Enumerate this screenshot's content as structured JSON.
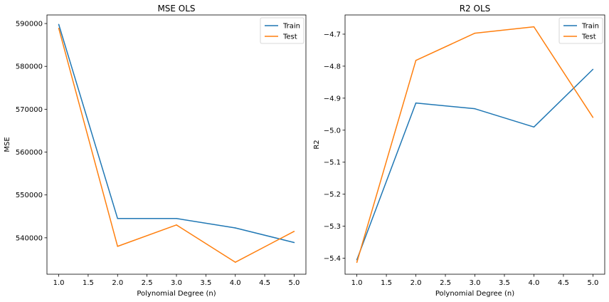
{
  "chart_data": [
    {
      "type": "line",
      "title": "MSE OLS",
      "xlabel": "Polynomial Degree (n)",
      "ylabel": "MSE",
      "x": [
        1.0,
        2.0,
        3.0,
        4.0,
        5.0
      ],
      "xticks": [
        1.0,
        1.5,
        2.0,
        2.5,
        3.0,
        3.5,
        4.0,
        4.5,
        5.0
      ],
      "xtick_labels": [
        "1.0",
        "1.5",
        "2.0",
        "2.5",
        "3.0",
        "3.5",
        "4.0",
        "4.5",
        "5.0"
      ],
      "xlim": [
        0.8,
        5.2
      ],
      "yticks": [
        540000,
        550000,
        560000,
        570000,
        580000,
        590000
      ],
      "ytick_labels": [
        "540000",
        "550000",
        "560000",
        "570000",
        "580000",
        "590000"
      ],
      "ylim": [
        531500,
        592000
      ],
      "legend": "top-right",
      "series": [
        {
          "name": "Train",
          "color": "#1f77b4",
          "values": [
            589800,
            544500,
            544500,
            542300,
            538900
          ]
        },
        {
          "name": "Test",
          "color": "#ff7f0e",
          "values": [
            588900,
            538000,
            543000,
            534300,
            541500
          ]
        }
      ]
    },
    {
      "type": "line",
      "title": "R2 OLS",
      "xlabel": "Polynomial Degree (n)",
      "ylabel": "R2",
      "x": [
        1.0,
        2.0,
        3.0,
        4.0,
        5.0
      ],
      "xticks": [
        1.0,
        1.5,
        2.0,
        2.5,
        3.0,
        3.5,
        4.0,
        4.5,
        5.0
      ],
      "xtick_labels": [
        "1.0",
        "1.5",
        "2.0",
        "2.5",
        "3.0",
        "3.5",
        "4.0",
        "4.5",
        "5.0"
      ],
      "xlim": [
        0.8,
        5.2
      ],
      "yticks": [
        -5.4,
        -5.3,
        -5.2,
        -5.1,
        -5.0,
        -4.9,
        -4.8,
        -4.7
      ],
      "ytick_labels": [
        "−5.4",
        "−5.3",
        "−5.2",
        "−5.1",
        "−5.0",
        "−4.9",
        "−4.8",
        "−4.7"
      ],
      "ylim": [
        -5.45,
        -4.64
      ],
      "legend": "top-right",
      "series": [
        {
          "name": "Train",
          "color": "#1f77b4",
          "values": [
            -5.405,
            -4.915,
            -4.933,
            -4.99,
            -4.81
          ]
        },
        {
          "name": "Test",
          "color": "#ff7f0e",
          "values": [
            -5.413,
            -4.782,
            -4.697,
            -4.677,
            -4.96
          ]
        }
      ]
    }
  ]
}
